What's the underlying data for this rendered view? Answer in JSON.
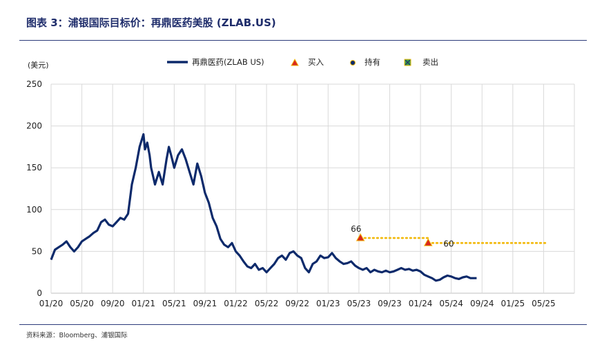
{
  "header": {
    "title": "图表 3：浦银国际目标价：再鼎医药美股 (ZLAB.US)"
  },
  "footer": {
    "source": "资料来源：Bloomberg、浦银国际"
  },
  "chart_data": {
    "type": "line",
    "ylabel": "(美元)",
    "ylim": [
      0,
      250
    ],
    "yticks": [
      "0",
      "50",
      "100",
      "150",
      "200",
      "250"
    ],
    "xticks": [
      "01/20",
      "05/20",
      "09/20",
      "01/21",
      "05/21",
      "09/21",
      "01/22",
      "05/22",
      "09/22",
      "01/23",
      "05/23",
      "09/23",
      "01/24",
      "05/24",
      "09/24",
      "01/25",
      "05/25"
    ],
    "grid": true,
    "legend_position": "top",
    "legend": {
      "series_label": "再鼎医药(ZLAB US)",
      "buy_label": "买入",
      "hold_label": "持有",
      "sell_label": "卖出"
    },
    "colors": {
      "line": "#0d2a6b",
      "target": "#f2b90c",
      "buy_marker": "#d9281e",
      "hold_marker": "#0d2a6b",
      "sell_marker": "#3aa04a",
      "grid": "#d9d9d9"
    },
    "series": [
      {
        "name": "再鼎医药(ZLAB US)",
        "x_months": [
          0,
          0.5,
          1,
          1.5,
          2,
          2.5,
          3,
          3.5,
          4,
          4.5,
          5,
          5.5,
          6,
          6.5,
          7,
          7.5,
          8,
          8.5,
          9,
          9.5,
          10,
          10.5,
          11,
          11.5,
          12,
          12.2,
          12.5,
          12.8,
          13,
          13.5,
          14,
          14.5,
          15,
          15.3,
          15.6,
          16,
          16.5,
          17,
          17.5,
          18,
          18.5,
          19,
          19.5,
          20,
          20.5,
          21,
          21.5,
          22,
          22.5,
          23,
          23.5,
          24,
          24.5,
          25,
          25.5,
          26,
          26.5,
          27,
          27.5,
          28,
          28.5,
          29,
          29.5,
          30,
          30.5,
          31,
          31.5,
          32,
          32.5,
          33,
          33.5,
          34,
          34.5,
          35,
          35.5,
          36,
          36.5,
          37,
          37.5,
          38,
          38.5,
          39,
          39.5,
          40,
          40.5,
          41,
          41.5,
          42,
          42.5,
          43,
          43.5,
          44,
          44.5,
          45,
          45.5,
          46,
          46.5,
          47,
          47.5,
          48,
          48.5,
          49,
          49.5,
          50,
          50.5,
          51,
          51.5,
          52,
          52.5,
          53,
          53.5,
          54,
          54.5,
          55,
          55.3
        ],
        "values": [
          40,
          52,
          55,
          58,
          62,
          55,
          50,
          55,
          62,
          65,
          68,
          72,
          75,
          85,
          88,
          82,
          80,
          85,
          90,
          88,
          95,
          130,
          150,
          175,
          190,
          172,
          180,
          165,
          150,
          130,
          145,
          130,
          160,
          175,
          165,
          150,
          165,
          172,
          160,
          145,
          130,
          155,
          140,
          120,
          108,
          90,
          80,
          65,
          58,
          55,
          60,
          50,
          45,
          38,
          32,
          30,
          35,
          28,
          30,
          25,
          30,
          35,
          42,
          45,
          40,
          48,
          50,
          45,
          42,
          30,
          25,
          35,
          38,
          45,
          42,
          43,
          48,
          42,
          38,
          35,
          36,
          38,
          33,
          30,
          28,
          30,
          25,
          28,
          26,
          25,
          27,
          25,
          26,
          28,
          30,
          28,
          29,
          27,
          28,
          26,
          22,
          20,
          18,
          15,
          16,
          19,
          21,
          20,
          18,
          17,
          19,
          20,
          18,
          18,
          18
        ]
      }
    ],
    "targets": [
      {
        "label": "66",
        "rating": "买入",
        "start_month": 40.2,
        "end_month": 49.0,
        "value": 66
      },
      {
        "label": "60",
        "rating": "买入",
        "start_month": 49.0,
        "end_month": 64.5,
        "value": 60
      }
    ]
  }
}
